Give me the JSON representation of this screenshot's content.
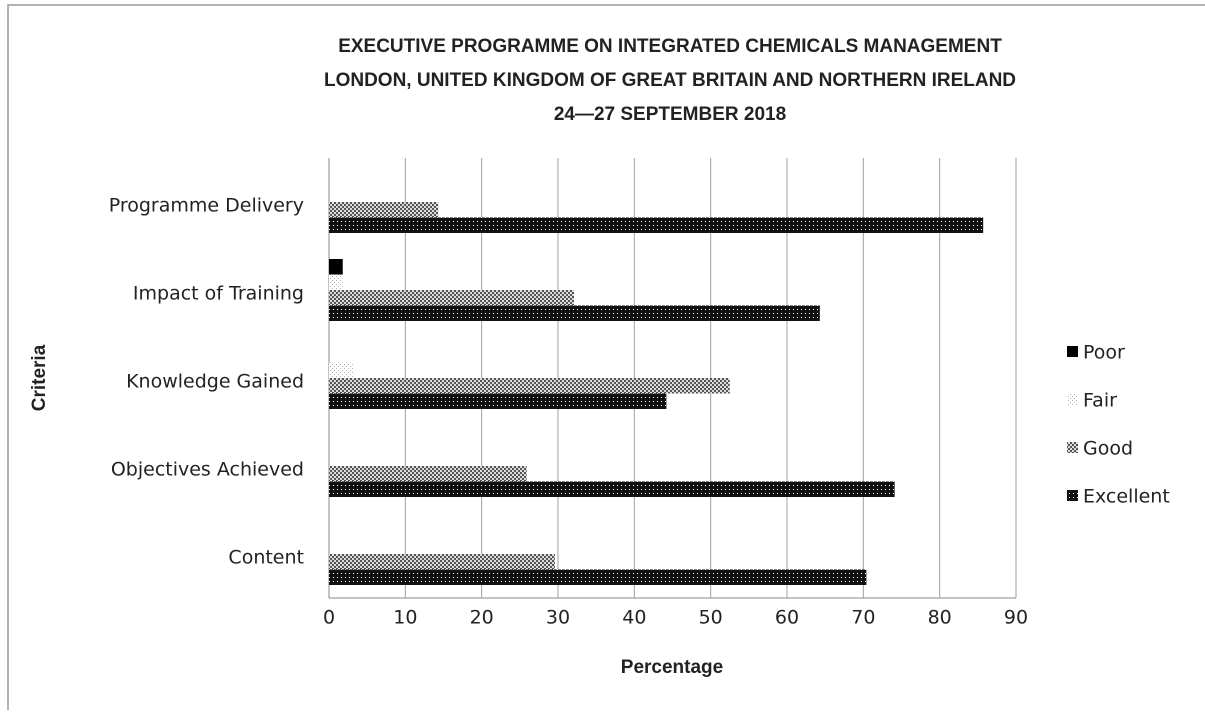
{
  "chart_data": {
    "type": "barh",
    "title": [
      "EXECUTIVE PROGRAMME ON INTEGRATED CHEMICALS MANAGEMENT",
      "LONDON, UNITED KINGDOM OF GREAT BRITAIN AND NORTHERN IRELAND",
      "24—27 SEPTEMBER 2018"
    ],
    "categories": [
      "Content",
      "Objectives Achieved",
      "Knowledge Gained",
      "Impact of Training",
      "Programme Delivery"
    ],
    "series": [
      {
        "name": "Poor",
        "color": "#000000",
        "values": [
          0,
          0,
          0,
          1.8,
          0
        ]
      },
      {
        "name": "Fair",
        "color": "#b0b0b0",
        "values": [
          0,
          0,
          3.3,
          1.8,
          0
        ]
      },
      {
        "name": "Good",
        "color": "#555555",
        "values": [
          29.6,
          25.9,
          52.5,
          32.1,
          14.3
        ]
      },
      {
        "name": "Excellent",
        "color": "#111111",
        "values": [
          70.4,
          74.1,
          44.2,
          64.3,
          85.7
        ]
      }
    ],
    "xlabel": "Percentage",
    "ylabel": "Criteria",
    "xlim": [
      0,
      90
    ],
    "xticks": [
      0,
      10,
      20,
      30,
      40,
      50,
      60,
      70,
      80,
      90
    ],
    "grid": true,
    "legend": "right"
  }
}
